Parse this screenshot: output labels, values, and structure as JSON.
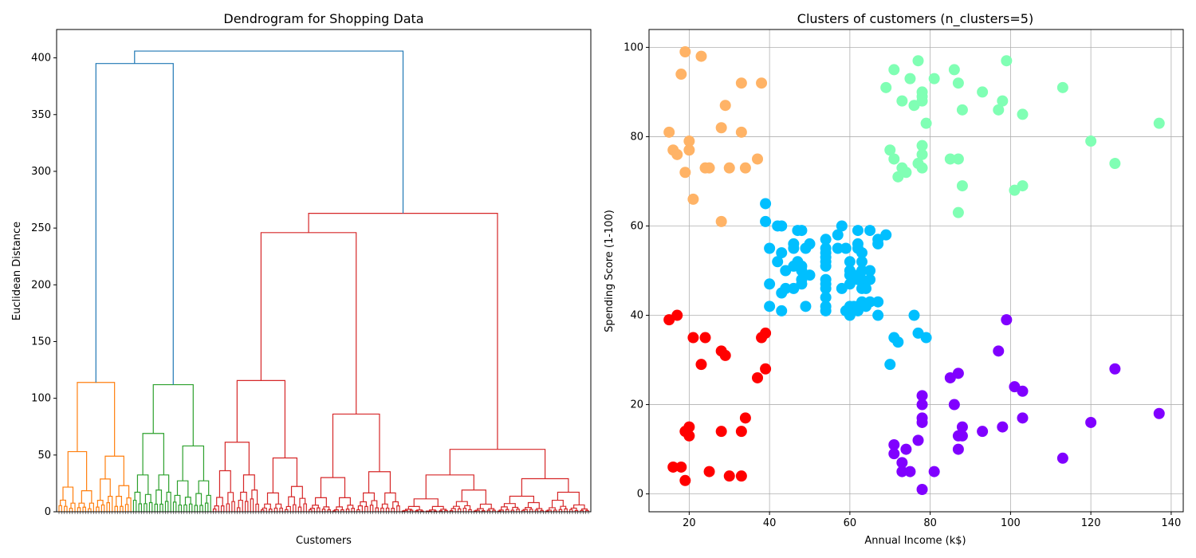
{
  "chart_data": [
    {
      "type": "dendrogram",
      "title": "Dendrogram for Shopping Data",
      "xlabel": "Customers",
      "ylabel": "Euclidean Distance",
      "ylim": [
        0,
        425
      ],
      "yticks": [
        0,
        50,
        100,
        150,
        200,
        250,
        300,
        350,
        400
      ],
      "grid": false,
      "colors": {
        "c1": "#ff7f0e",
        "c2": "#2ca02c",
        "c3": "#d62728",
        "top": "#1f77b4"
      },
      "top_merges": [
        {
          "name": "c1+c2",
          "height": 395
        },
        {
          "name": "root",
          "height": 406
        },
        {
          "name": "c3 main split",
          "height": 263
        }
      ],
      "cluster_merges": [
        {
          "cluster": "c1",
          "height": 114,
          "subclusters": [
            53,
            49
          ]
        },
        {
          "cluster": "c2",
          "height": 112,
          "subclusters": [
            69,
            58
          ]
        },
        {
          "cluster": "c3",
          "height": 263,
          "subclusters": [
            246,
            55
          ]
        }
      ],
      "leaf_count": 200
    },
    {
      "type": "scatter",
      "title": "Clusters of customers (n_clusters=5)",
      "xlabel": "Annual Income (k$)",
      "ylabel": "Spending Score (1-100)",
      "xlim": [
        10,
        143
      ],
      "ylim": [
        -4,
        104
      ],
      "xticks": [
        20,
        40,
        60,
        80,
        100,
        120,
        140
      ],
      "yticks": [
        0,
        20,
        40,
        60,
        80,
        100
      ],
      "grid": true,
      "series": [
        {
          "color": "#ff0000",
          "points": [
            [
              15,
              39
            ],
            [
              16,
              6
            ],
            [
              17,
              40
            ],
            [
              18,
              6
            ],
            [
              19,
              3
            ],
            [
              19,
              14
            ],
            [
              20,
              15
            ],
            [
              20,
              13
            ],
            [
              21,
              35
            ],
            [
              23,
              29
            ],
            [
              24,
              35
            ],
            [
              25,
              5
            ],
            [
              28,
              14
            ],
            [
              28,
              32
            ],
            [
              29,
              31
            ],
            [
              30,
              4
            ],
            [
              33,
              4
            ],
            [
              33,
              14
            ],
            [
              34,
              17
            ],
            [
              37,
              26
            ],
            [
              38,
              35
            ],
            [
              39,
              36
            ],
            [
              39,
              28
            ]
          ]
        },
        {
          "color": "#ffb366",
          "points": [
            [
              15,
              81
            ],
            [
              16,
              77
            ],
            [
              17,
              76
            ],
            [
              18,
              94
            ],
            [
              19,
              72
            ],
            [
              19,
              99
            ],
            [
              20,
              77
            ],
            [
              20,
              79
            ],
            [
              21,
              66
            ],
            [
              23,
              98
            ],
            [
              24,
              73
            ],
            [
              25,
              73
            ],
            [
              28,
              82
            ],
            [
              28,
              61
            ],
            [
              29,
              87
            ],
            [
              30,
              73
            ],
            [
              33,
              92
            ],
            [
              33,
              81
            ],
            [
              34,
              73
            ],
            [
              37,
              75
            ],
            [
              38,
              92
            ]
          ]
        },
        {
          "color": "#00bfff",
          "points": [
            [
              39,
              65
            ],
            [
              39,
              61
            ],
            [
              40,
              55
            ],
            [
              40,
              47
            ],
            [
              40,
              42
            ],
            [
              42,
              52
            ],
            [
              42,
              60
            ],
            [
              43,
              60
            ],
            [
              43,
              54
            ],
            [
              43,
              45
            ],
            [
              43,
              41
            ],
            [
              44,
              50
            ],
            [
              44,
              46
            ],
            [
              46,
              51
            ],
            [
              46,
              46
            ],
            [
              46,
              56
            ],
            [
              46,
              55
            ],
            [
              47,
              52
            ],
            [
              47,
              59
            ],
            [
              48,
              51
            ],
            [
              48,
              59
            ],
            [
              48,
              50
            ],
            [
              48,
              48
            ],
            [
              48,
              47
            ],
            [
              49,
              55
            ],
            [
              49,
              42
            ],
            [
              50,
              49
            ],
            [
              50,
              56
            ],
            [
              54,
              47
            ],
            [
              54,
              54
            ],
            [
              54,
              53
            ],
            [
              54,
              48
            ],
            [
              54,
              52
            ],
            [
              54,
              42
            ],
            [
              54,
              51
            ],
            [
              54,
              55
            ],
            [
              54,
              41
            ],
            [
              54,
              44
            ],
            [
              54,
              57
            ],
            [
              54,
              46
            ],
            [
              57,
              58
            ],
            [
              57,
              55
            ],
            [
              58,
              60
            ],
            [
              58,
              46
            ],
            [
              59,
              55
            ],
            [
              59,
              41
            ],
            [
              60,
              49
            ],
            [
              60,
              40
            ],
            [
              60,
              42
            ],
            [
              60,
              52
            ],
            [
              60,
              47
            ],
            [
              60,
              50
            ],
            [
              61,
              42
            ],
            [
              61,
              49
            ],
            [
              62,
              41
            ],
            [
              62,
              48
            ],
            [
              62,
              59
            ],
            [
              62,
              55
            ],
            [
              62,
              56
            ],
            [
              62,
              42
            ],
            [
              63,
              50
            ],
            [
              63,
              46
            ],
            [
              63,
              43
            ],
            [
              63,
              48
            ],
            [
              63,
              52
            ],
            [
              63,
              54
            ],
            [
              64,
              42
            ],
            [
              64,
              46
            ],
            [
              65,
              48
            ],
            [
              65,
              50
            ],
            [
              65,
              43
            ],
            [
              65,
              59
            ],
            [
              67,
              43
            ],
            [
              67,
              57
            ],
            [
              67,
              56
            ],
            [
              67,
              40
            ],
            [
              69,
              58
            ],
            [
              70,
              29
            ],
            [
              71,
              35
            ],
            [
              72,
              34
            ],
            [
              76,
              40
            ],
            [
              77,
              36
            ],
            [
              79,
              35
            ]
          ]
        },
        {
          "color": "#80ffb4",
          "points": [
            [
              69,
              91
            ],
            [
              70,
              77
            ],
            [
              71,
              95
            ],
            [
              71,
              75
            ],
            [
              72,
              71
            ],
            [
              73,
              88
            ],
            [
              73,
              73
            ],
            [
              74,
              72
            ],
            [
              75,
              93
            ],
            [
              76,
              87
            ],
            [
              77,
              97
            ],
            [
              77,
              74
            ],
            [
              78,
              90
            ],
            [
              78,
              88
            ],
            [
              78,
              76
            ],
            [
              78,
              89
            ],
            [
              78,
              78
            ],
            [
              78,
              73
            ],
            [
              79,
              83
            ],
            [
              81,
              93
            ],
            [
              85,
              75
            ],
            [
              86,
              95
            ],
            [
              87,
              63
            ],
            [
              87,
              75
            ],
            [
              87,
              92
            ],
            [
              88,
              86
            ],
            [
              88,
              69
            ],
            [
              93,
              90
            ],
            [
              97,
              86
            ],
            [
              98,
              88
            ],
            [
              99,
              97
            ],
            [
              101,
              68
            ],
            [
              103,
              85
            ],
            [
              103,
              69
            ],
            [
              113,
              91
            ],
            [
              120,
              79
            ],
            [
              126,
              74
            ],
            [
              137,
              83
            ]
          ]
        },
        {
          "color": "#8000ff",
          "points": [
            [
              71,
              11
            ],
            [
              71,
              9
            ],
            [
              73,
              5
            ],
            [
              73,
              7
            ],
            [
              74,
              10
            ],
            [
              75,
              5
            ],
            [
              77,
              12
            ],
            [
              78,
              1
            ],
            [
              78,
              17
            ],
            [
              78,
              22
            ],
            [
              78,
              16
            ],
            [
              78,
              20
            ],
            [
              81,
              5
            ],
            [
              85,
              26
            ],
            [
              86,
              20
            ],
            [
              87,
              27
            ],
            [
              87,
              13
            ],
            [
              87,
              10
            ],
            [
              88,
              13
            ],
            [
              88,
              15
            ],
            [
              93,
              14
            ],
            [
              97,
              32
            ],
            [
              98,
              15
            ],
            [
              99,
              39
            ],
            [
              101,
              24
            ],
            [
              103,
              17
            ],
            [
              103,
              23
            ],
            [
              113,
              8
            ],
            [
              120,
              16
            ],
            [
              126,
              28
            ],
            [
              137,
              18
            ]
          ]
        }
      ]
    }
  ]
}
